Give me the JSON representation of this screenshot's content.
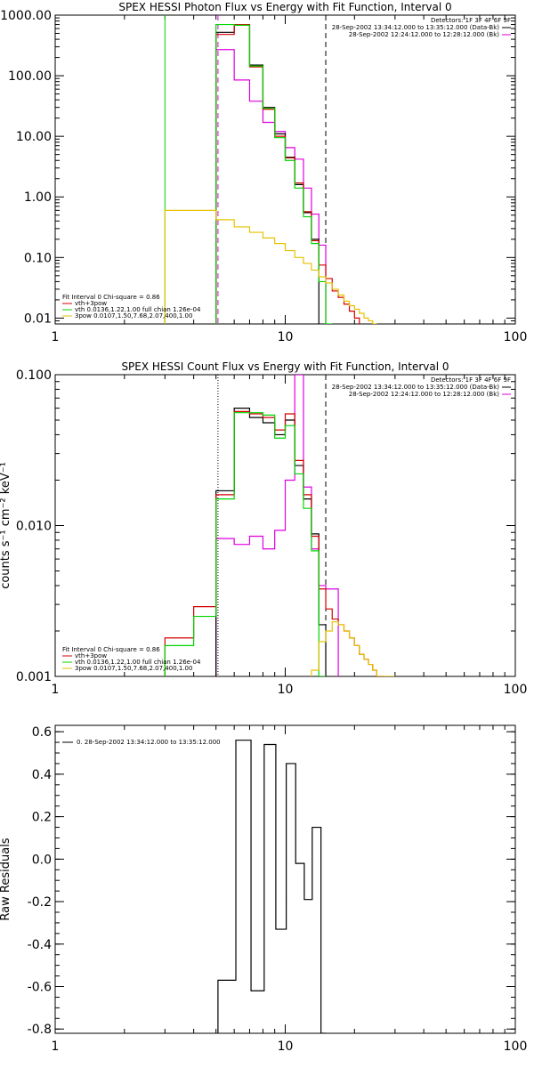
{
  "chart_data": [
    {
      "type": "line",
      "title": "SPEX HESSI Photon Flux vs Energy with Fit Function, Interval 0",
      "xscale": "log",
      "yscale": "log",
      "xlim": [
        1,
        100
      ],
      "ylim": [
        0.008,
        1000
      ],
      "xticks": [
        "1",
        "10",
        "100"
      ],
      "yticks": [
        "1000.00",
        "100.00",
        "10.00",
        "1.00",
        "0.10",
        "0.01"
      ],
      "ytick_values": [
        1000,
        100,
        10,
        1,
        0.1,
        0.01
      ],
      "legend_top": [
        "Detectors: 1F 3F 4F 6F 9F",
        "28-Sep-2002 13:34:12.000 to 13:35:12.000 (Data-Bk)",
        "28-Sep-2002 12:24:12.000 to 12:28:12.000 (Bk)"
      ],
      "legend_bottom": [
        "Fit Interval 0   Chi-square = 0.86",
        "vth+3pow",
        "vth 0.0136,1.22,1.00  full chian 1.26e-04",
        "3pow 0.0107,1.50,7.68,2.07,400,1.00"
      ],
      "colors": {
        "data": "#000000",
        "model": "#d40000",
        "vth": "#00d400",
        "pow": "#e6c200",
        "bk": "#e000e0"
      },
      "vlines": [
        {
          "x": 3.0,
          "color": "#00d400",
          "style": "solid"
        },
        {
          "x": 5.1,
          "color": "#e000e0",
          "style": "dashed"
        },
        {
          "x": 15,
          "color": "#000000",
          "style": "dashed"
        }
      ],
      "edges": [
        3,
        4,
        5,
        6,
        7,
        8,
        9,
        10,
        11,
        12,
        13,
        14,
        15,
        16,
        17,
        18,
        19,
        20,
        21,
        22,
        23,
        24,
        25,
        27,
        30
      ],
      "series": [
        {
          "key": "bk",
          "start": 2,
          "values": [
            270,
            85,
            38,
            17,
            12,
            6.5,
            4.2,
            1.4,
            0.52,
            0.16
          ]
        },
        {
          "key": "data",
          "start": 2,
          "values": [
            520,
            680,
            150,
            30,
            11,
            4.5,
            1.6,
            0.55,
            0.2
          ]
        },
        {
          "key": "model",
          "start": 2,
          "values": [
            480,
            700,
            140,
            28,
            10,
            4.4,
            1.7,
            0.57,
            0.19,
            0.075,
            0.045,
            0.028,
            0.022,
            0.017,
            0.013,
            0.01
          ]
        },
        {
          "key": "vth",
          "start": 2,
          "values": [
            700,
            680,
            145,
            29,
            9.5,
            4.0,
            1.4,
            0.47,
            0.17,
            0.04,
            0.0068
          ]
        },
        {
          "key": "pow",
          "start": 0,
          "values": [
            0.6,
            0.6,
            0.42,
            0.32,
            0.26,
            0.21,
            0.17,
            0.13,
            0.1,
            0.08,
            0.062,
            0.048,
            0.038,
            0.03,
            0.024,
            0.019,
            0.016,
            0.014,
            0.012,
            0.01,
            0.009,
            0.008
          ]
        }
      ]
    },
    {
      "type": "line",
      "title": "SPEX HESSI Count Flux vs Energy with Fit Function, Interval 0",
      "ylabel": "counts s⁻¹ cm⁻² keV⁻¹",
      "xscale": "log",
      "yscale": "log",
      "xlim": [
        1,
        100
      ],
      "ylim": [
        0.001,
        0.1
      ],
      "xticks": [
        "1",
        "10",
        "100"
      ],
      "yticks": [
        "0.100",
        "0.010",
        "0.001"
      ],
      "ytick_values": [
        0.1,
        0.01,
        0.001
      ],
      "legend_top": [
        "Detectors: 1F 3F 4F 6F 9F",
        "28-Sep-2002 13:34:12.000 to 13:35:12.000 (Data-Bk)",
        "28-Sep-2002 12:24:12.000 to 12:28:12.000 (Bk)"
      ],
      "legend_bottom": [
        "Fit Interval 0   Chi-square = 0.86",
        "vth+3pow",
        "vth 0.0136,1.22,1.00  full chian 1.26e-04",
        "3pow 0.0107,1.50,7.68,2.07,400,1.00"
      ],
      "colors": {
        "data": "#000000",
        "model": "#d40000",
        "vth": "#00d400",
        "pow": "#e6c200",
        "bk": "#e000e0"
      },
      "vlines": [
        {
          "x": 5.1,
          "color": "#000000",
          "style": "dotted"
        },
        {
          "x": 15,
          "color": "#000000",
          "style": "dashed"
        }
      ],
      "edges": [
        3,
        4,
        5,
        6,
        7,
        8,
        9,
        10,
        11,
        12,
        13,
        14,
        15,
        16,
        17,
        18,
        19,
        20,
        21,
        22,
        23,
        24,
        25,
        27,
        30,
        33,
        36
      ],
      "series": [
        {
          "key": "bk",
          "start": 2,
          "values": [
            0.0082,
            0.0075,
            0.0085,
            0.007,
            0.0093,
            0.02,
            0.1,
            0.018,
            0.007,
            0.004,
            0.0038,
            0.0038
          ]
        },
        {
          "key": "data",
          "start": 2,
          "values": [
            0.017,
            0.06,
            0.052,
            0.048,
            0.04,
            0.05,
            0.025,
            0.015,
            0.0088,
            0.0022
          ]
        },
        {
          "key": "model",
          "start": 0,
          "values": [
            0.0018,
            0.0029,
            0.016,
            0.057,
            0.055,
            0.052,
            0.043,
            0.055,
            0.027,
            0.016,
            0.0085,
            0.0038,
            0.0028,
            0.0024,
            0.0022,
            0.002,
            0.0018,
            0.0016,
            0.0014,
            0.0013,
            0.0012,
            0.0011,
            0.001
          ]
        },
        {
          "key": "vth",
          "start": 0,
          "values": [
            0.0016,
            0.0025,
            0.015,
            0.056,
            0.056,
            0.054,
            0.038,
            0.046,
            0.022,
            0.013,
            0.0068,
            0.0009
          ]
        },
        {
          "key": "pow",
          "start": 10,
          "values": [
            0.0011,
            0.0017,
            0.002,
            0.0023,
            0.0022,
            0.002,
            0.0018,
            0.0016,
            0.0014,
            0.0013,
            0.0012,
            0.0011,
            0.001,
            0.0009
          ]
        }
      ]
    },
    {
      "type": "line",
      "ylabel": "Raw Residuals",
      "xscale": "log",
      "yscale": "linear",
      "xlim": [
        1,
        100
      ],
      "ylim": [
        -0.82,
        0.63
      ],
      "xticks": [
        "1",
        "10",
        "100"
      ],
      "yticks": [
        "0.6",
        "0.4",
        "0.2",
        "0.0",
        "-0.2",
        "-0.4",
        "-0.6",
        "-0.8"
      ],
      "ytick_values": [
        0.6,
        0.4,
        0.2,
        0.0,
        -0.2,
        -0.4,
        -0.6,
        -0.8
      ],
      "legend_top": [
        "0. 28-Sep-2002 13:34:12.000 to 13:35:12.000"
      ],
      "colors": {
        "data": "#000000"
      },
      "vlines": [],
      "edges": [
        5.1,
        6.1,
        7.1,
        8.1,
        9.1,
        10.1,
        11.1,
        12.1,
        13.1,
        14.3,
        15
      ],
      "series": [
        {
          "key": "data",
          "start": 0,
          "values": [
            -0.57,
            0.56,
            -0.62,
            0.54,
            -0.33,
            0.45,
            -0.02,
            -0.19,
            0.15,
            -0.85
          ]
        }
      ]
    }
  ]
}
